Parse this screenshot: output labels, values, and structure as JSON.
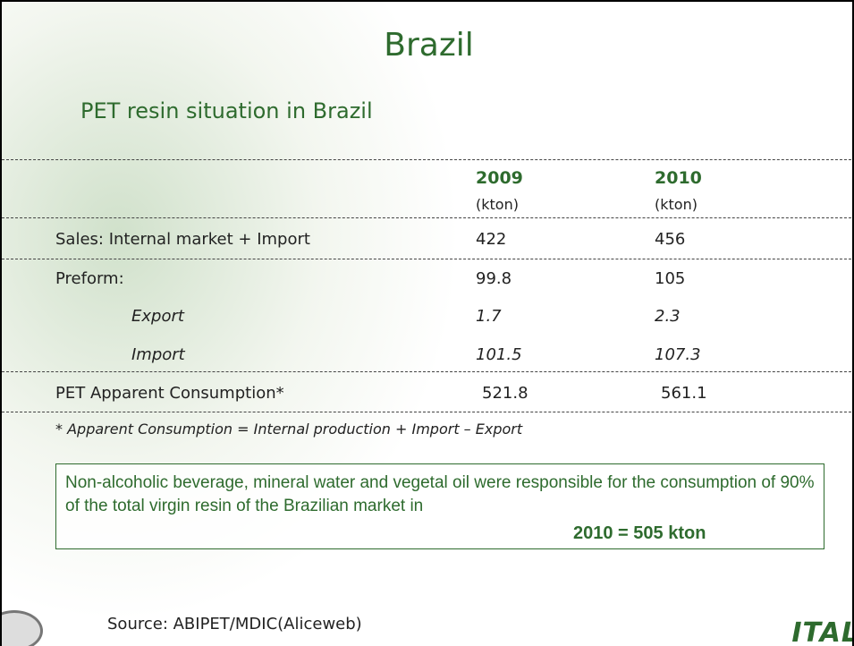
{
  "title": "Brazil",
  "subtitle": "PET resin situation in Brazil",
  "table": {
    "header": [
      "2009",
      "2010"
    ],
    "units": [
      "(kton)",
      "(kton)"
    ],
    "rows": [
      [
        "Sales: Internal market + Import",
        "422",
        "456"
      ],
      [
        "Preform:",
        "99.8",
        "105"
      ],
      [
        "Export",
        "1.7",
        "2.3"
      ],
      [
        "Import",
        "101.5",
        "107.3"
      ],
      [
        "PET Apparent Consumption*",
        "521.8",
        "561.1"
      ]
    ]
  },
  "footnote": "* Apparent Consumption = Internal production + Import – Export",
  "note": {
    "text": "Non-alcoholic beverage, mineral water and vegetal oil were responsible for the consumption of 90% of the total virgin resin of the Brazilian market in",
    "highlight": "2010 = 505 kton"
  },
  "source": "Source: ABIPET/MDIC(Aliceweb)",
  "logo": "ITAL"
}
